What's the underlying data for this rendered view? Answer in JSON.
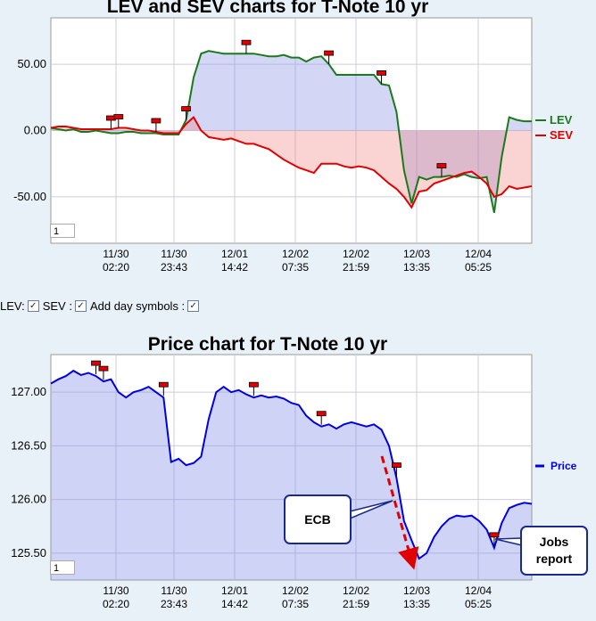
{
  "chart_data": [
    {
      "type": "line",
      "title": "LEV and SEV charts for T-Note 10 yr",
      "x_tick_labels": [
        [
          "11/30",
          "02:20"
        ],
        [
          "11/30",
          "23:43"
        ],
        [
          "12/01",
          "14:42"
        ],
        [
          "12/02",
          "07:35"
        ],
        [
          "12/02",
          "21:59"
        ],
        [
          "12/03",
          "13:35"
        ],
        [
          "12/04",
          "05:25"
        ]
      ],
      "y_ticks": [
        50,
        0,
        -50
      ],
      "y_tick_labels": [
        "50.00",
        "0.00",
        "-50.00"
      ],
      "ylim": [
        -85,
        85
      ],
      "legend_position": "right",
      "series": [
        {
          "name": "LEV",
          "color": "#1a7a1a",
          "values": [
            2,
            1,
            0,
            1,
            -1,
            -1,
            0,
            -1,
            -2,
            -2,
            -1,
            -1,
            -2,
            -2,
            -2,
            -3,
            -3,
            -3,
            8,
            40,
            58,
            60,
            59,
            58,
            58,
            58,
            58,
            58,
            57,
            56,
            56,
            57,
            55,
            55,
            52,
            55,
            56,
            50,
            42,
            42,
            42,
            42,
            42,
            42,
            35,
            34,
            14,
            -30,
            -55,
            -35,
            -37,
            -35,
            -35,
            -34,
            -35,
            -33,
            -35,
            -36,
            -35,
            -62,
            -20,
            10,
            8,
            7,
            7
          ]
        },
        {
          "name": "SEV",
          "color": "#e00000",
          "values": [
            2,
            3,
            3,
            2,
            1,
            1,
            1,
            1,
            1,
            2,
            2,
            1,
            0,
            0,
            -1,
            -2,
            -2,
            -2,
            5,
            10,
            0,
            -5,
            -6,
            -7,
            -6,
            -8,
            -10,
            -10,
            -12,
            -14,
            -18,
            -22,
            -25,
            -28,
            -30,
            -32,
            -25,
            -25,
            -25,
            -27,
            -28,
            -27,
            -28,
            -30,
            -35,
            -40,
            -44,
            -50,
            -58,
            -46,
            -45,
            -40,
            -38,
            -36,
            -34,
            -32,
            -31,
            -35,
            -40,
            -50,
            -48,
            -42,
            -44,
            -43,
            -42
          ]
        }
      ],
      "day_markers_x": [
        8,
        9,
        14,
        18,
        26,
        37,
        44,
        52
      ]
    },
    {
      "type": "line",
      "title": "Price chart for T-Note 10 yr",
      "x_tick_labels": [
        [
          "11/30",
          "02:20"
        ],
        [
          "11/30",
          "23:43"
        ],
        [
          "12/01",
          "14:42"
        ],
        [
          "12/02",
          "07:35"
        ],
        [
          "12/02",
          "21:59"
        ],
        [
          "12/03",
          "13:35"
        ],
        [
          "12/04",
          "05:25"
        ]
      ],
      "y_ticks": [
        127.0,
        126.5,
        126.0,
        125.5
      ],
      "y_tick_labels": [
        "127.00",
        "126.50",
        "126.00",
        "125.50"
      ],
      "ylim": [
        125.25,
        127.35
      ],
      "legend_position": "right",
      "series": [
        {
          "name": "Price",
          "color": "#0000e0",
          "values": [
            127.08,
            127.12,
            127.15,
            127.2,
            127.16,
            127.18,
            127.15,
            127.1,
            127.12,
            127.0,
            126.95,
            127.0,
            127.02,
            127.05,
            127.0,
            126.95,
            126.35,
            126.38,
            126.32,
            126.34,
            126.4,
            126.75,
            127.0,
            127.05,
            127.0,
            127.02,
            126.98,
            126.95,
            126.97,
            126.95,
            126.96,
            126.94,
            126.9,
            126.88,
            126.78,
            126.72,
            126.68,
            126.7,
            126.66,
            126.7,
            126.72,
            126.7,
            126.68,
            126.7,
            126.65,
            126.5,
            126.2,
            125.8,
            125.62,
            125.45,
            125.5,
            125.65,
            125.75,
            125.82,
            125.85,
            125.84,
            125.85,
            125.8,
            125.72,
            125.55,
            125.78,
            125.92,
            125.95,
            125.97,
            125.96
          ]
        }
      ],
      "day_markers_x": [
        6,
        7,
        15,
        27,
        36,
        46,
        59
      ],
      "annotations": [
        {
          "text": "ECB"
        },
        {
          "text_lines": [
            "Jobs",
            "report"
          ]
        }
      ]
    }
  ],
  "controls": {
    "lev_label": "LEV:",
    "sev_label": "SEV :",
    "day_symbols_label": "Add day symbols :"
  },
  "zoom_value": "1"
}
